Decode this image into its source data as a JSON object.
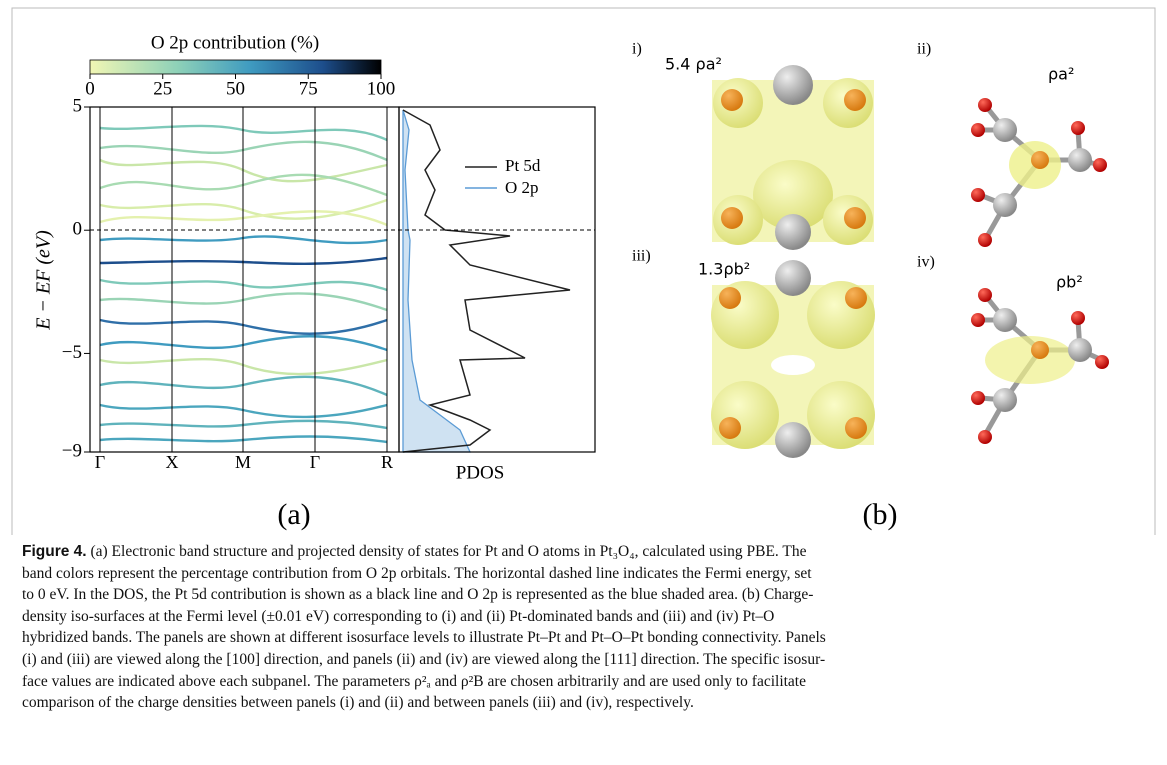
{
  "figure": {
    "colorbar": {
      "title": "O 2p contribution (%)",
      "lim": [
        0,
        100
      ],
      "ticks": [
        0,
        25,
        50,
        75,
        100
      ]
    },
    "bands": {
      "ylim": [
        -9,
        5
      ],
      "yticks": [
        5,
        0,
        {
          "value": -5,
          "label": "−5"
        },
        {
          "value": -9,
          "label": "−9"
        }
      ],
      "y_label": "E − EF  (eV)",
      "kpoints": [
        "Γ",
        "X",
        "M",
        "Γ",
        "R"
      ]
    },
    "pdos": {
      "x_label": "PDOS",
      "legend": [
        "Pt 5d",
        "O 2p"
      ]
    },
    "panel_a_label": "(a)",
    "panel_b_label": "(b)",
    "subpanels": [
      {
        "label": "i)",
        "iso": "5.4 ρa²"
      },
      {
        "label": "ii)",
        "iso": "ρa²"
      },
      {
        "label": "iii)",
        "iso": "1.3ρb²"
      },
      {
        "label": "iv)",
        "iso": "ρb²"
      }
    ],
    "caption": {
      "label": "Figure 4.",
      "lines": [
        "(a) Electronic band structure and projected density of states for Pt and O atoms in Pt₃O₄, calculated using PBE. The",
        "band colors represent the percentage contribution from O 2p orbitals. The horizontal dashed line indicates the Fermi energy, set",
        "to 0 eV. In the DOS, the Pt 5d contribution is shown as a black line and O 2p is represented as the blue shaded area. (b) Charge-",
        "density iso-surfaces at the Fermi level (±0.01 eV) corresponding to (i) and (ii) Pt-dominated bands and (iii) and (iv) Pt–O",
        "hybridized bands. The panels are shown at different isosurface levels to illustrate Pt–Pt and Pt–O–Pt bonding connectivity. Panels",
        "(i) and (iii) are viewed along the [100] direction, and panels (ii) and (iv) are viewed along the [111] direction. The specific isosur-",
        "face values are indicated above each subpanel. The parameters ρ²ₐ and ρ²B are chosen arbitrarily and are used only to facilitate",
        "comparison of the charge densities between panels (i) and (ii) and between panels (iii) and (iv), respectively."
      ]
    }
  }
}
